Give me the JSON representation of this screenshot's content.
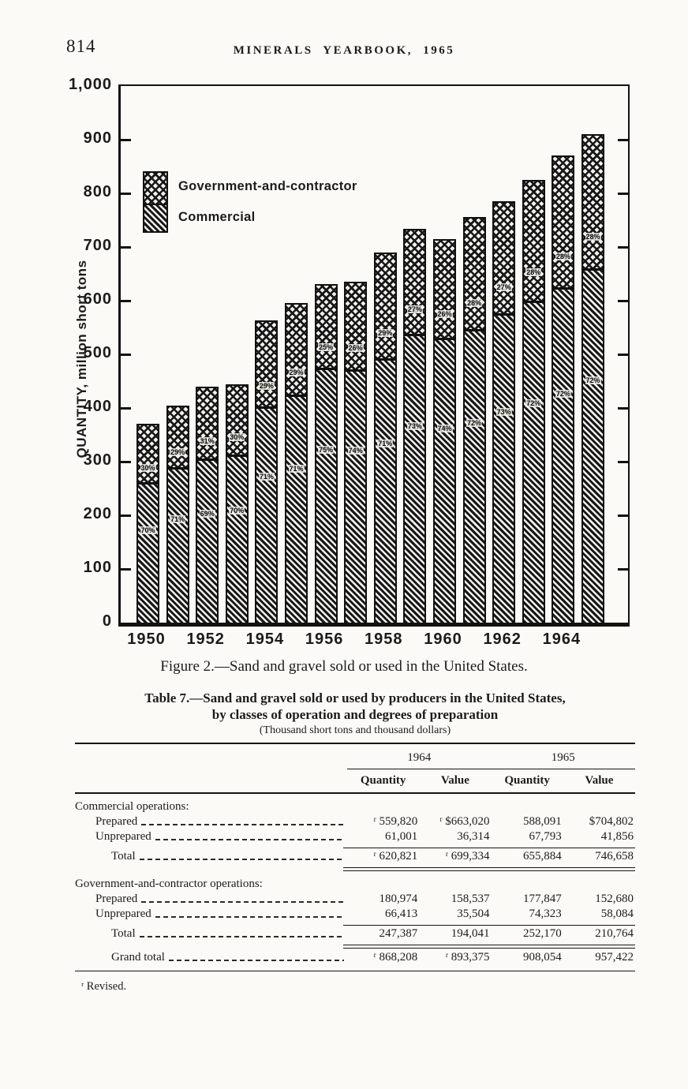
{
  "page": {
    "number": "814",
    "running_title": "MINERALS YEARBOOK, 1965"
  },
  "figure": {
    "caption": "Figure 2.—Sand and gravel sold or used in the United States.",
    "y_axis_title": "QUANTITY, million short tons",
    "legend": {
      "government": "Government-and-contractor",
      "commercial": "Commercial"
    }
  },
  "chart_data": {
    "type": "bar",
    "stacked": true,
    "title": "Figure 2.—Sand and gravel sold or used in the United States.",
    "ylabel": "QUANTITY, million short tons",
    "units": "million short tons",
    "ylim": [
      0,
      1000
    ],
    "y_tick_interval": 100,
    "y_tick_labels": [
      "1,000",
      "900",
      "800",
      "700",
      "600",
      "500",
      "400",
      "300",
      "200",
      "100",
      "0"
    ],
    "x_tick_labels": [
      "1950",
      "1952",
      "1954",
      "1956",
      "1958",
      "1960",
      "1962",
      "1964"
    ],
    "years": [
      1950,
      1951,
      1952,
      1953,
      1954,
      1955,
      1956,
      1957,
      1958,
      1959,
      1960,
      1961,
      1962,
      1963,
      1964,
      1965
    ],
    "grid": false,
    "legend_position": "upper-left",
    "series": [
      {
        "name": "Commercial",
        "pattern": "diagonal-hatch",
        "values": [
          257,
          285,
          302,
          309,
          398,
          420,
          471,
          468,
          488,
          534,
          527,
          542,
          572,
          595,
          621,
          656
        ],
        "percent_labels": [
          "70%",
          "71%",
          "69%",
          "70%",
          "71%",
          "71%",
          "75%",
          "74%",
          "71%",
          "73%",
          "74%",
          "72%",
          "73%",
          "72%",
          "72%",
          "72%"
        ]
      },
      {
        "name": "Government-and-contractor",
        "pattern": "crosshatch",
        "values": [
          110,
          116,
          136,
          133,
          162,
          172,
          157,
          165,
          199,
          197,
          185,
          211,
          211,
          227,
          247,
          252
        ],
        "percent_labels": [
          "30%",
          "29%",
          "31%",
          "30%",
          "29%",
          "29%",
          "25%",
          "26%",
          "29%",
          "27%",
          "26%",
          "28%",
          "27%",
          "28%",
          "28%",
          "28%"
        ]
      }
    ],
    "totals": [
      367,
      401,
      438,
      442,
      560,
      592,
      628,
      633,
      687,
      731,
      712,
      753,
      783,
      822,
      868,
      908
    ]
  },
  "table": {
    "title_line1": "Table 7.—Sand and gravel sold or used by producers in the United States,",
    "title_line2": "by classes of operation and degrees of preparation",
    "subtitle": "(Thousand short tons and thousand dollars)",
    "year_groups": [
      "1964",
      "1965"
    ],
    "column_headers": [
      "Quantity",
      "Value",
      "Quantity",
      "Value"
    ],
    "rows": [
      {
        "type": "group",
        "label": "Commercial operations:"
      },
      {
        "type": "item",
        "label": "Prepared",
        "cells": [
          "ʳ 559,820",
          "ʳ $663,020",
          "588,091",
          "$704,802"
        ]
      },
      {
        "type": "item",
        "label": "Unprepared",
        "cells": [
          "61,001",
          "36,314",
          "67,793",
          "41,856"
        ]
      },
      {
        "type": "total",
        "label": "Total",
        "cells": [
          "ʳ 620,821",
          "ʳ 699,334",
          "655,884",
          "746,658"
        ]
      },
      {
        "type": "group",
        "label": "Government-and-contractor operations:"
      },
      {
        "type": "item",
        "label": "Prepared",
        "cells": [
          "180,974",
          "158,537",
          "177,847",
          "152,680"
        ]
      },
      {
        "type": "item",
        "label": "Unprepared",
        "cells": [
          "66,413",
          "35,504",
          "74,323",
          "58,084"
        ]
      },
      {
        "type": "total",
        "label": "Total",
        "cells": [
          "247,387",
          "194,041",
          "252,170",
          "210,764"
        ]
      },
      {
        "type": "grand",
        "label": "Grand total",
        "cells": [
          "ʳ 868,208",
          "ʳ 893,375",
          "908,054",
          "957,422"
        ]
      }
    ],
    "footnote": "ʳ Revised."
  }
}
